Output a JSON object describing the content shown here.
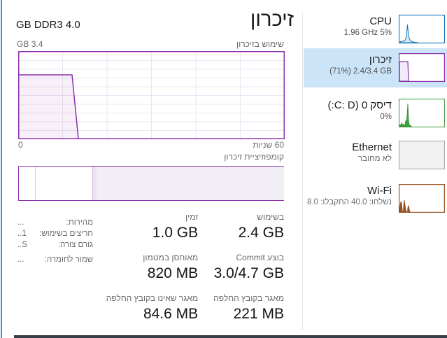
{
  "main": {
    "title": "זיכרון",
    "ram_total": "4.0 GB DDR3",
    "usage_chart": {
      "label": "שימוש בזיכרון",
      "ymax_label": "3.4 GB",
      "x_left": "0",
      "x_right": "60 שניות"
    },
    "composition": {
      "label": "קומפוזיציית זיכרון"
    },
    "stats": [
      {
        "label": "בשימוש",
        "value": "2.4 GB"
      },
      {
        "label": "זמין",
        "value": "1.0 GB"
      },
      {
        "label": "בוצע Commit",
        "value": "3.0/4.7 GB"
      },
      {
        "label": "מאוחסן במטמון",
        "value": "820 MB"
      },
      {
        "label": "מאגר בקובץ החלפה",
        "value": "221 MB"
      },
      {
        "label": "מאגר שאינו בקובץ החלפה",
        "value": "84.6 MB"
      }
    ],
    "hardware": [
      {
        "label": "מהירות:",
        "value": "..."
      },
      {
        "label": "חריצים בשימוש:",
        "value": "..1"
      },
      {
        "label": "גורם צורה:",
        "value": "..S"
      },
      {
        "label": "שמור לחומרה:",
        "value": "..."
      }
    ]
  },
  "sidebar": {
    "items": [
      {
        "id": "cpu",
        "title": "CPU",
        "subtitle": "1.96 GHz 5%",
        "color": "#1176b8",
        "selected": false
      },
      {
        "id": "memory",
        "title": "זיכרון",
        "subtitle": "(71%) 2.4/3.4 GB",
        "color": "#8d30ae",
        "selected": true
      },
      {
        "id": "disk",
        "title": "דיסק 0 (C: D:)",
        "subtitle": "0%",
        "color": "#4ba14b",
        "selected": false
      },
      {
        "id": "ethernet",
        "title": "Ethernet",
        "subtitle": "לא מחובר",
        "color": "#ababab",
        "selected": false
      },
      {
        "id": "wifi",
        "title": "Wi-Fi",
        "subtitle": "נשלחו: 40.0 התקבלו: 8.0",
        "color": "#9c5524",
        "selected": false
      }
    ]
  },
  "chart_data": {
    "memory_usage_graph": {
      "type": "area",
      "title": "שימוש בזיכרון",
      "window_seconds": 60,
      "ylim": [
        "0",
        "3.4 GB"
      ],
      "description": "usage plateau ~2.4GB (71%) over left ~20% of the 60s window, then drops to 0; grid 6 cols x 10 rows"
    },
    "composition_bar": {
      "type": "bar",
      "segments": [
        {
          "name": "free",
          "percent": 6.0,
          "style": "empty"
        },
        {
          "name": "standby",
          "percent": 21.6,
          "style": "empty"
        },
        {
          "name": "modified",
          "percent": 1.6,
          "style": "hatched"
        },
        {
          "name": "in-use",
          "percent": 70.8,
          "style": "filled"
        }
      ]
    },
    "accent_colors": {
      "cpu": "#1176b8",
      "memory": "#8d30ae",
      "disk": "#4ba14b",
      "ethernet": "#ababab",
      "wifi": "#9c5524",
      "selection": "#cbe4f8"
    }
  }
}
